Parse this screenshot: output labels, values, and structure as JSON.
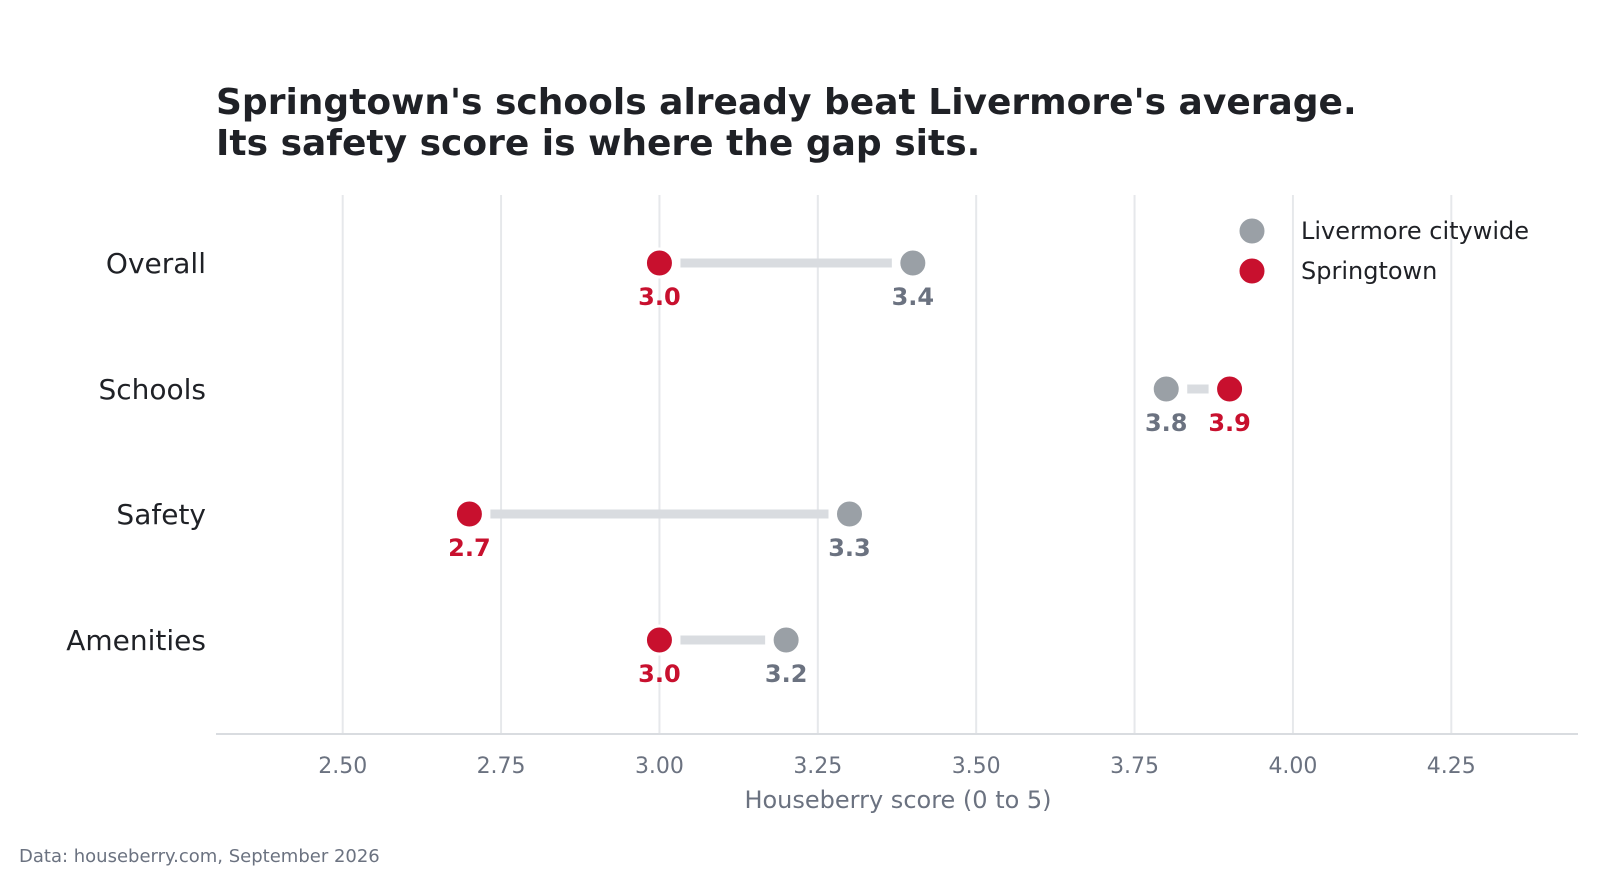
{
  "chart_data": {
    "type": "dumbbell",
    "title_lines": [
      "Springtown's schools already beat Livermore's average.",
      "Its safety score is where the gap sits."
    ],
    "xlabel": "Houseberry score (0 to 5)",
    "xlim": [
      2.3,
      4.45
    ],
    "xticks": [
      2.5,
      2.75,
      3.0,
      3.25,
      3.5,
      3.75,
      4.0,
      4.25
    ],
    "xtick_labels": [
      "2.50",
      "2.75",
      "3.00",
      "3.25",
      "3.50",
      "3.75",
      "4.00",
      "4.25"
    ],
    "grid": "vertical",
    "legend_position": "top-right",
    "categories": [
      "Overall",
      "Schools",
      "Safety",
      "Amenities"
    ],
    "series": [
      {
        "name": "Livermore citywide",
        "color": "#9aa0a6",
        "label_color": "#6b7280",
        "values": [
          3.4,
          3.8,
          3.3,
          3.2
        ],
        "labels": [
          "3.4",
          "3.8",
          "3.3",
          "3.2"
        ]
      },
      {
        "name": "Springtown",
        "color": "#c8102e",
        "label_color": "#c8102e",
        "values": [
          3.0,
          3.9,
          2.7,
          3.0
        ],
        "labels": [
          "3.0",
          "3.9",
          "2.7",
          "3.0"
        ]
      }
    ],
    "connector_color": "#d9dce0",
    "source": "Data: houseberry.com, September 2026"
  }
}
